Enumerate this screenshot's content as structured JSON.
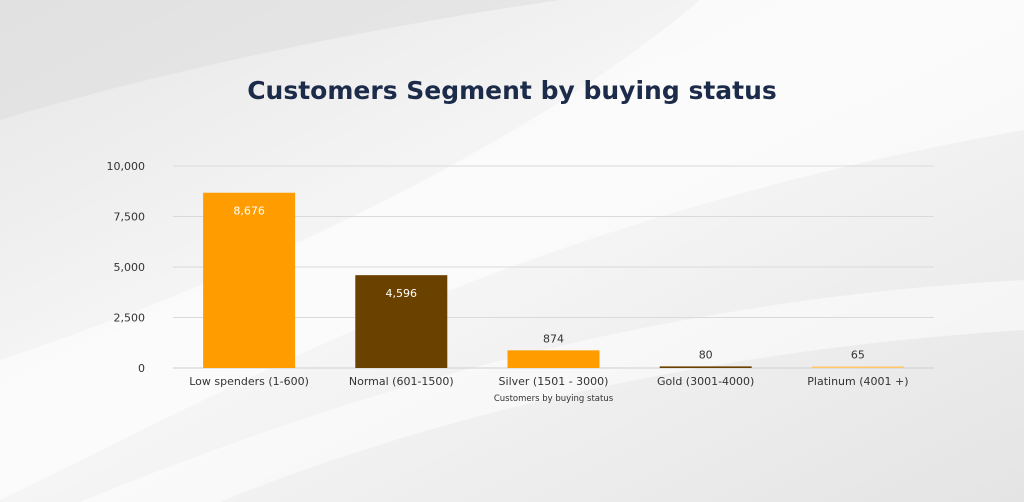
{
  "chart_data": {
    "type": "bar",
    "title": "Customers Segment by buying status",
    "xlabel": "Customers by buying status",
    "ylabel": "",
    "ylim": [
      0,
      10000
    ],
    "yticks": [
      0,
      2500,
      5000,
      7500,
      10000
    ],
    "ytick_labels": [
      "0",
      "2,500",
      "5,000",
      "7,500",
      "10,000"
    ],
    "categories": [
      "Low spenders (1-600)",
      "Normal (601-1500)",
      "Silver (1501 - 3000)",
      "Gold (3001-4000)",
      "Platinum (4001 +)"
    ],
    "values": [
      8676,
      4596,
      874,
      80,
      65
    ],
    "data_labels": [
      "8,676",
      "4,596",
      "874",
      "80",
      "65"
    ],
    "colors": [
      "#ff9d00",
      "#6b4100",
      "#ff9d00",
      "#6b4100",
      "#ffc76a"
    ],
    "grid": true,
    "legend": "none"
  }
}
